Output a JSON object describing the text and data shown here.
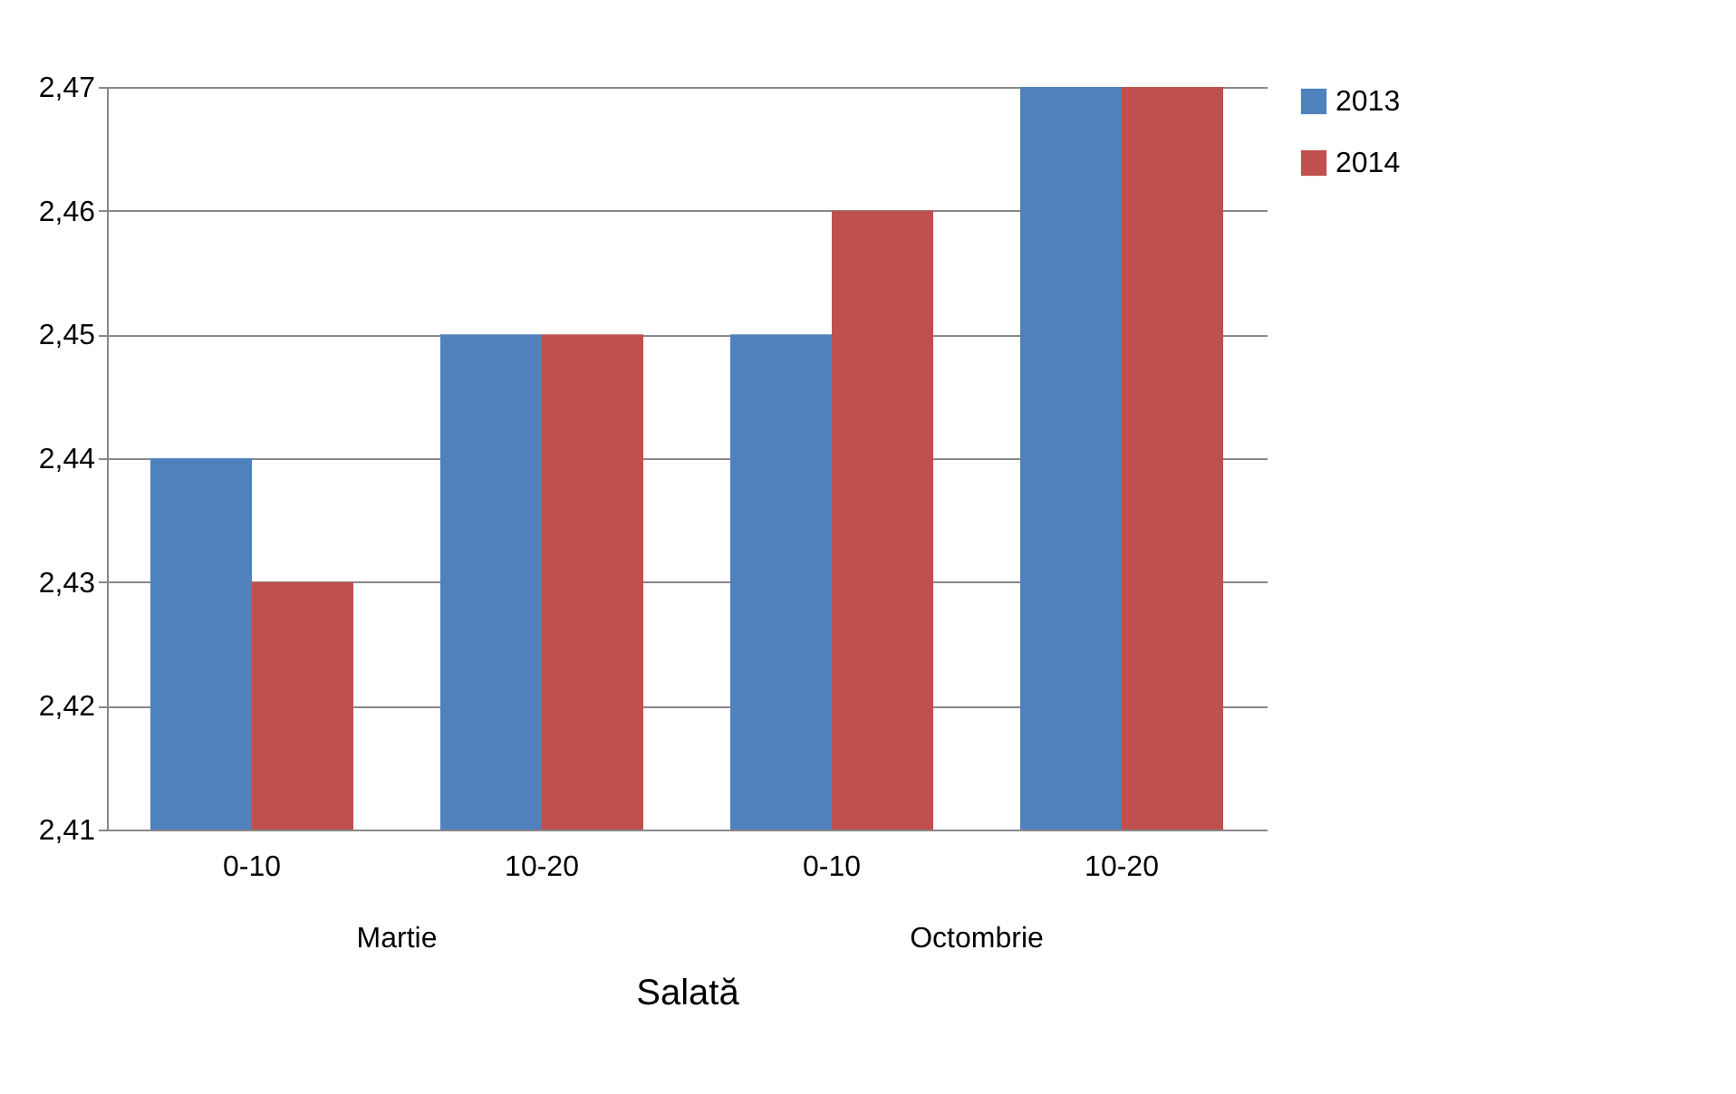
{
  "chart_data": {
    "type": "bar",
    "xlabel": "Salată",
    "categories": [
      "0-10",
      "10-20",
      "0-10",
      "10-20"
    ],
    "annotations": [
      "Martie",
      "Octombrie"
    ],
    "series": [
      {
        "name": "2013",
        "color": "#4f81bd",
        "values": [
          2.44,
          2.45,
          2.45,
          2.47
        ]
      },
      {
        "name": "2014",
        "color": "#c0504d",
        "values": [
          2.43,
          2.45,
          2.46,
          2.47
        ]
      }
    ],
    "ylim": [
      2.41,
      2.47
    ],
    "yticks": [
      {
        "value": 2.41,
        "label": "2,41"
      },
      {
        "value": 2.42,
        "label": "2,42"
      },
      {
        "value": 2.43,
        "label": "2,43"
      },
      {
        "value": 2.44,
        "label": "2,44"
      },
      {
        "value": 2.45,
        "label": "2,45"
      },
      {
        "value": 2.46,
        "label": "2,46"
      },
      {
        "value": 2.47,
        "label": "2,47"
      }
    ],
    "grid": "y",
    "legend": "right"
  }
}
